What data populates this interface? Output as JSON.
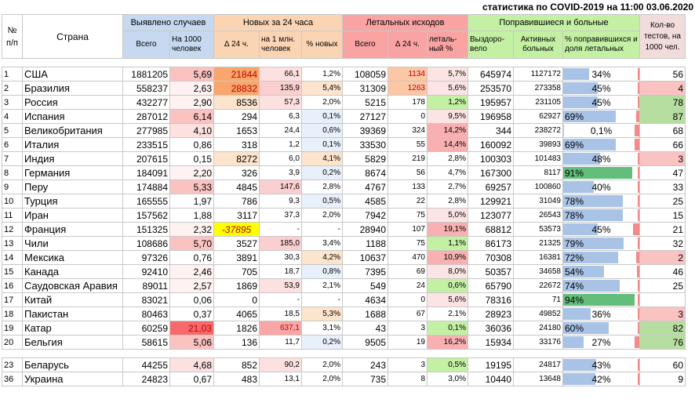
{
  "title": "статистика по COVID-2019 на 11:00 03.06.2020",
  "headers": {
    "num": "№ п/п",
    "country": "Страна",
    "detected": "Выявлено случаев",
    "new24": "Новых за 24 часа",
    "deaths": "Летальных исходов",
    "recovered_sick": "Поправившиеся и больные",
    "tests": "Кол-во тестов, на 1000 чел.",
    "total": "Всего",
    "per1000": "На 1000 человек",
    "d24": "∆ 24 ч.",
    "per1m": "на 1 млн. человек",
    "pct_new": "% новых",
    "deaths_total": "Всего",
    "deaths_d24": "∆ 24 ч.",
    "lethal_pct": "леталь-ный %",
    "recovered": "Выздоро-вело",
    "active": "Активных больных",
    "recovered_share": "% поправившихся и доля летальных"
  },
  "colors": {
    "blue_header": "#c6d9f1",
    "orange_header": "#fbd4b4",
    "red_header": "#f9a3a3",
    "green_header": "#c4f0a4",
    "pink_header": "#f2dcdb"
  },
  "rows": [
    {
      "num": "1",
      "country": "США",
      "total": "1881205",
      "per1000": "5,69",
      "d24": "21844",
      "per1m": "66,1",
      "pct_new": "1,2%",
      "deaths": "108059",
      "deaths_d24": "1134",
      "lethal": "5,7%",
      "recovered": "645974",
      "active": "1127172",
      "rec_pct": "34%",
      "rec_frac": 0.34,
      "letal_frac": 0.057,
      "tests": "56"
    },
    {
      "num": "2",
      "country": "Бразилия",
      "total": "558237",
      "per1000": "2,63",
      "d24": "28832",
      "per1m": "135,9",
      "pct_new": "5,4%",
      "deaths": "31309",
      "deaths_d24": "1263",
      "lethal": "5,6%",
      "recovered": "253570",
      "active": "273358",
      "rec_pct": "45%",
      "rec_frac": 0.45,
      "letal_frac": 0.056,
      "tests": "4"
    },
    {
      "num": "3",
      "country": "Россия",
      "total": "432277",
      "per1000": "2,90",
      "d24": "8536",
      "per1m": "57,3",
      "pct_new": "2,0%",
      "deaths": "5215",
      "deaths_d24": "178",
      "lethal": "1,2%",
      "recovered": "195957",
      "active": "231105",
      "rec_pct": "45%",
      "rec_frac": 0.45,
      "letal_frac": 0.012,
      "tests": "78"
    },
    {
      "num": "4",
      "country": "Испания",
      "total": "287012",
      "per1000": "6,14",
      "d24": "294",
      "per1m": "6,3",
      "pct_new": "0,1%",
      "deaths": "27127",
      "deaths_d24": "0",
      "lethal": "9,5%",
      "recovered": "196958",
      "active": "62927",
      "rec_pct": "69%",
      "rec_frac": 0.69,
      "letal_frac": 0.095,
      "tests": "87"
    },
    {
      "num": "5",
      "country": "Великобритания",
      "total": "277985",
      "per1000": "4,10",
      "d24": "1653",
      "per1m": "24,4",
      "pct_new": "0,6%",
      "deaths": "39369",
      "deaths_d24": "324",
      "lethal": "14,2%",
      "recovered": "344",
      "active": "238272",
      "rec_pct": "0,1%",
      "rec_frac": 0.001,
      "letal_frac": 0.142,
      "tests": "68"
    },
    {
      "num": "6",
      "country": "Италия",
      "total": "233515",
      "per1000": "0,86",
      "d24": "318",
      "per1m": "1,2",
      "pct_new": "0,1%",
      "deaths": "33530",
      "deaths_d24": "55",
      "lethal": "14,4%",
      "recovered": "160092",
      "active": "39893",
      "rec_pct": "69%",
      "rec_frac": 0.69,
      "letal_frac": 0.144,
      "tests": "66"
    },
    {
      "num": "7",
      "country": "Индия",
      "total": "207615",
      "per1000": "0,15",
      "d24": "8272",
      "per1m": "6,0",
      "pct_new": "4,1%",
      "deaths": "5829",
      "deaths_d24": "219",
      "lethal": "2,8%",
      "recovered": "100303",
      "active": "101483",
      "rec_pct": "48%",
      "rec_frac": 0.48,
      "letal_frac": 0.028,
      "tests": "3"
    },
    {
      "num": "8",
      "country": "Германия",
      "total": "184091",
      "per1000": "2,20",
      "d24": "326",
      "per1m": "3,9",
      "pct_new": "0,2%",
      "deaths": "8674",
      "deaths_d24": "56",
      "lethal": "4,7%",
      "recovered": "167300",
      "active": "8117",
      "rec_pct": "91%",
      "rec_frac": 0.91,
      "letal_frac": 0.047,
      "tests": "47"
    },
    {
      "num": "9",
      "country": "Перу",
      "total": "174884",
      "per1000": "5,33",
      "d24": "4845",
      "per1m": "147,6",
      "pct_new": "2,8%",
      "deaths": "4767",
      "deaths_d24": "133",
      "lethal": "2,7%",
      "recovered": "69257",
      "active": "100860",
      "rec_pct": "40%",
      "rec_frac": 0.4,
      "letal_frac": 0.027,
      "tests": "33"
    },
    {
      "num": "10",
      "country": "Турция",
      "total": "165555",
      "per1000": "1,97",
      "d24": "786",
      "per1m": "9,3",
      "pct_new": "0,5%",
      "deaths": "4585",
      "deaths_d24": "22",
      "lethal": "2,8%",
      "recovered": "129921",
      "active": "31049",
      "rec_pct": "78%",
      "rec_frac": 0.78,
      "letal_frac": 0.028,
      "tests": "25"
    },
    {
      "num": "11",
      "country": "Иран",
      "total": "157562",
      "per1000": "1,88",
      "d24": "3117",
      "per1m": "37,3",
      "pct_new": "2,0%",
      "deaths": "7942",
      "deaths_d24": "75",
      "lethal": "5,0%",
      "recovered": "123077",
      "active": "26543",
      "rec_pct": "78%",
      "rec_frac": 0.78,
      "letal_frac": 0.05,
      "tests": "15"
    },
    {
      "num": "12",
      "country": "Франция",
      "total": "151325",
      "per1000": "2,32",
      "d24": "-37895",
      "per1m": "-",
      "pct_new": "-",
      "deaths": "28940",
      "deaths_d24": "107",
      "lethal": "19,1%",
      "recovered": "68812",
      "active": "53573",
      "rec_pct": "45%",
      "rec_frac": 0.45,
      "letal_frac": 0.191,
      "tests": "21"
    },
    {
      "num": "13",
      "country": "Чили",
      "total": "108686",
      "per1000": "5,70",
      "d24": "3527",
      "per1m": "185,0",
      "pct_new": "3,4%",
      "deaths": "1188",
      "deaths_d24": "75",
      "lethal": "1,1%",
      "recovered": "86173",
      "active": "21325",
      "rec_pct": "79%",
      "rec_frac": 0.79,
      "letal_frac": 0.011,
      "tests": "32"
    },
    {
      "num": "14",
      "country": "Мексика",
      "total": "97326",
      "per1000": "0,76",
      "d24": "3891",
      "per1m": "30,3",
      "pct_new": "4,2%",
      "deaths": "10637",
      "deaths_d24": "470",
      "lethal": "10,9%",
      "recovered": "70308",
      "active": "16381",
      "rec_pct": "72%",
      "rec_frac": 0.72,
      "letal_frac": 0.109,
      "tests": "2"
    },
    {
      "num": "15",
      "country": "Канада",
      "total": "92410",
      "per1000": "2,46",
      "d24": "705",
      "per1m": "18,7",
      "pct_new": "0,8%",
      "deaths": "7395",
      "deaths_d24": "69",
      "lethal": "8,0%",
      "recovered": "50357",
      "active": "34658",
      "rec_pct": "54%",
      "rec_frac": 0.54,
      "letal_frac": 0.08,
      "tests": "46"
    },
    {
      "num": "16",
      "country": "Саудовская Аравия",
      "total": "89011",
      "per1000": "2,57",
      "d24": "1869",
      "per1m": "53,9",
      "pct_new": "2,1%",
      "deaths": "549",
      "deaths_d24": "24",
      "lethal": "0,6%",
      "recovered": "65790",
      "active": "22672",
      "rec_pct": "74%",
      "rec_frac": 0.74,
      "letal_frac": 0.006,
      "tests": "25"
    },
    {
      "num": "17",
      "country": "Китай",
      "total": "83021",
      "per1000": "0,06",
      "d24": "0",
      "per1m": "-",
      "pct_new": "-",
      "deaths": "4634",
      "deaths_d24": "0",
      "lethal": "5,6%",
      "recovered": "78316",
      "active": "71",
      "rec_pct": "94%",
      "rec_frac": 0.94,
      "letal_frac": 0.056,
      "tests": ""
    },
    {
      "num": "18",
      "country": "Пакистан",
      "total": "80463",
      "per1000": "0,37",
      "d24": "4065",
      "per1m": "18,5",
      "pct_new": "5,3%",
      "deaths": "1688",
      "deaths_d24": "67",
      "lethal": "2,1%",
      "recovered": "28923",
      "active": "49852",
      "rec_pct": "36%",
      "rec_frac": 0.36,
      "letal_frac": 0.021,
      "tests": "3"
    },
    {
      "num": "19",
      "country": "Катар",
      "total": "60259",
      "per1000": "21,03",
      "d24": "1826",
      "per1m": "637,1",
      "pct_new": "3,1%",
      "deaths": "43",
      "deaths_d24": "3",
      "lethal": "0,1%",
      "recovered": "36036",
      "active": "24180",
      "rec_pct": "60%",
      "rec_frac": 0.6,
      "letal_frac": 0.001,
      "tests": "82"
    },
    {
      "num": "20",
      "country": "Бельгия",
      "total": "58615",
      "per1000": "5,06",
      "d24": "136",
      "per1m": "11,7",
      "pct_new": "0,2%",
      "deaths": "9505",
      "deaths_d24": "19",
      "lethal": "16,2%",
      "recovered": "15934",
      "active": "33176",
      "rec_pct": "27%",
      "rec_frac": 0.27,
      "letal_frac": 0.162,
      "tests": "76"
    }
  ],
  "extra_rows": [
    {
      "num": "23",
      "country": "Беларусь",
      "total": "44255",
      "per1000": "4,68",
      "d24": "852",
      "per1m": "90,2",
      "pct_new": "2,0%",
      "deaths": "243",
      "deaths_d24": "3",
      "lethal": "0,5%",
      "recovered": "19195",
      "active": "24817",
      "rec_pct": "43%",
      "rec_frac": 0.43,
      "letal_frac": 0.005,
      "tests": "60"
    },
    {
      "num": "36",
      "country": "Украина",
      "total": "24823",
      "per1000": "0,67",
      "d24": "483",
      "per1m": "13,1",
      "pct_new": "2,0%",
      "deaths": "735",
      "deaths_d24": "8",
      "lethal": "3,0%",
      "recovered": "10440",
      "active": "13648",
      "rec_pct": "42%",
      "rec_frac": 0.42,
      "letal_frac": 0.03,
      "tests": "9"
    }
  ]
}
